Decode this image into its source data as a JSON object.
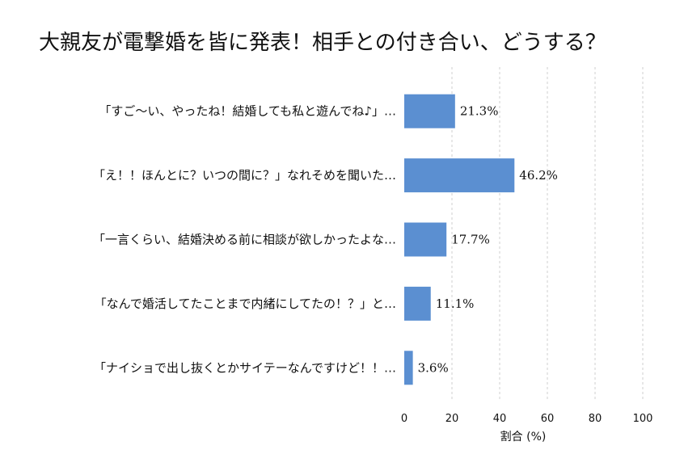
{
  "chart_data": {
    "type": "bar",
    "orientation": "horizontal",
    "title": "大親友が電撃婚を皆に発表！相手との付き合い、どうする？",
    "categories": [
      "「すご～い、やったね！結婚しても私と遊んでね♪」…",
      "「え！！ほんとに？いつの間に？」なれそめを聞いた…",
      "「一言くらい、結婚決める前に相談が欲しかったよな…",
      "「なんで婚活してたことまで内緒にしてたの！？」と…",
      "「ナイショで出し抜くとかサイテーなんですけど！！…"
    ],
    "values": [
      21.3,
      46.2,
      17.7,
      11.1,
      3.6
    ],
    "data_labels": [
      "21.3%",
      "46.2%",
      "17.7%",
      "11.1%",
      "3.6%"
    ],
    "xlabel": "割合 (%)",
    "ylabel": "",
    "xlim": [
      0,
      100
    ],
    "xticks": [
      "0",
      "20",
      "40",
      "60",
      "80",
      "100"
    ],
    "grid": true,
    "bar_color": "#5b8fd1"
  }
}
